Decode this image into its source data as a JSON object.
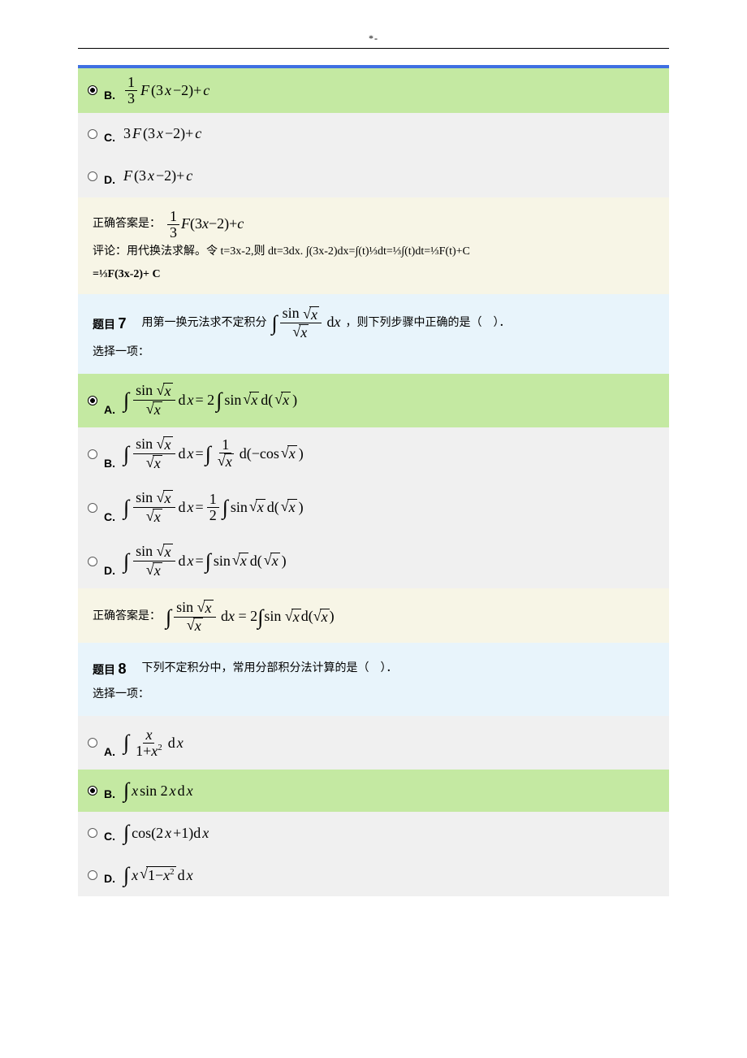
{
  "page_header_mark": "*-",
  "colors": {
    "accent_border": "#3f70e2",
    "selected_bg": "#c4e9a2",
    "unselected_bg": "#f0f0f0",
    "info_bg": "#f7f5e6",
    "question_bg": "#e8f4fb",
    "text": "#000000"
  },
  "q6_tail": {
    "options": {
      "B": {
        "letter": "B.",
        "html": "<span class='frac'><span class='num up'>1</span><span class='den up'>3</span></span><span class='math'>F</span><span class='math up'>(3</span><span class='math'>x</span><span class='math up'>−2)+</span><span class='math'>c</span>",
        "selected": true
      },
      "C": {
        "letter": "C.",
        "html": "<span class='math up'>3</span><span class='math'>F</span><span class='math up'>(3</span><span class='math'>x</span><span class='math up'>−2)+</span><span class='math'>c</span>",
        "selected": false
      },
      "D": {
        "letter": "D.",
        "html": "<span class='math'>F</span><span class='math up'>(3</span><span class='math'>x</span><span class='math up'>−2)+</span><span class='math'>c</span>",
        "selected": false
      }
    },
    "correct_label": "正确答案是：",
    "correct_html": "<span class='frac'><span class='num up'>1</span><span class='den up'>3</span></span><span class='math'>F</span><span class='math up'>(3</span><span class='math'>x</span><span class='math up'>−2)+</span><span class='math'>c</span>",
    "commentary_line1": "评论：用代换法求解。令 t=3x-2,则 dt=3dx.  ∫(3x-2)dx=∫(t)⅓dt=⅓∫(t)dt=⅓F(t)+C",
    "commentary_line2": "=⅓F(3x-2)+ C"
  },
  "q7": {
    "label": "题目",
    "number": "7",
    "stem_pre": "用第一换元法求不定积分",
    "stem_integral_html": "<span class='intsym'>∫</span><span class='frac'><span class='num'><span class='up'>sin </span><span class='sqrt'><span class='radicand'>x</span></span></span><span class='den'><span class='sqrt'><span class='radicand'>x</span></span></span></span><span class='up'> d</span>x",
    "stem_post": "，则下列步骤中正确的是（　）．",
    "select_one": "选择一项：",
    "options": {
      "A": {
        "letter": "A.",
        "selected": true,
        "html": "<span class='intsym'>∫</span><span class='frac'><span class='num'><span class='up'>sin </span><span class='sqrt'><span class='radicand'>x</span></span></span><span class='den'><span class='sqrt'><span class='radicand'>x</span></span></span></span><span class='up'> d</span>x <span class='up'>= 2</span><span class='intsym'>∫</span><span class='up'>sin </span><span class='sqrt'><span class='radicand'>x</span></span><span class='up'>d(</span><span class='sqrt'><span class='radicand'>x</span></span><span class='up'>)</span>"
      },
      "B": {
        "letter": "B.",
        "selected": false,
        "html": "<span class='intsym'>∫</span><span class='frac'><span class='num'><span class='up'>sin </span><span class='sqrt'><span class='radicand'>x</span></span></span><span class='den'><span class='sqrt'><span class='radicand'>x</span></span></span></span><span class='up'> d</span>x <span class='up'>= </span><span class='intsym'>∫</span><span class='frac'><span class='num up'>1</span><span class='den'><span class='sqrt'><span class='radicand'>x</span></span></span></span><span class='up'> d(−cos </span><span class='sqrt'><span class='radicand'>x</span></span><span class='up'>)</span>"
      },
      "C": {
        "letter": "C.",
        "selected": false,
        "html": "<span class='intsym'>∫</span><span class='frac'><span class='num'><span class='up'>sin </span><span class='sqrt'><span class='radicand'>x</span></span></span><span class='den'><span class='sqrt'><span class='radicand'>x</span></span></span></span><span class='up'> d</span>x <span class='up'>= </span><span class='frac'><span class='num up'>1</span><span class='den up'>2</span></span><span class='intsym'>∫</span><span class='up'>sin </span><span class='sqrt'><span class='radicand'>x</span></span><span class='up'>d(</span><span class='sqrt'><span class='radicand'>x</span></span><span class='up'>)</span>"
      },
      "D": {
        "letter": "D.",
        "selected": false,
        "html": "<span class='intsym'>∫</span><span class='frac'><span class='num'><span class='up'>sin </span><span class='sqrt'><span class='radicand'>x</span></span></span><span class='den'><span class='sqrt'><span class='radicand'>x</span></span></span></span><span class='up'> d</span>x <span class='up'>= </span><span class='intsym'>∫</span><span class='up'>sin </span><span class='sqrt'><span class='radicand'>x</span></span><span class='up'>d(</span><span class='sqrt'><span class='radicand'>x</span></span><span class='up'>)</span>"
      }
    },
    "correct_label": "正确答案是：",
    "correct_html": "<span class='intsym'>∫</span><span class='frac'><span class='num'><span class='up'>sin </span><span class='sqrt'><span class='radicand'>x</span></span></span><span class='den'><span class='sqrt'><span class='radicand'>x</span></span></span></span><span class='up'> d</span>x <span class='up'>= 2</span><span class='intsym'>∫</span><span class='up'>sin </span><span class='sqrt'><span class='radicand'>x</span></span><span class='up'>d(</span><span class='sqrt'><span class='radicand'>x</span></span><span class='up'>)</span>"
  },
  "q8": {
    "label": "题目",
    "number": "8",
    "stem": "下列不定积分中，常用分部积分法计算的是（　）．",
    "select_one": "选择一项：",
    "options": {
      "A": {
        "letter": "A.",
        "selected": false,
        "html": "<span class='intsym'>∫</span><span class='frac'><span class='num'>x</span><span class='den'><span class='up'>1+</span>x<span class='sup up'>2</span></span></span><span class='up'> d</span>x"
      },
      "B": {
        "letter": "B.",
        "selected": true,
        "html": "<span class='intsym'>∫</span>x<span class='up'>sin 2</span>x<span class='up'>d</span>x"
      },
      "C": {
        "letter": "C.",
        "selected": false,
        "html": "<span class='intsym'>∫</span><span class='up'>cos(2</span>x<span class='up'>+1)d</span>x"
      },
      "D": {
        "letter": "D.",
        "selected": false,
        "html": "<span class='intsym'>∫</span>x<span class='sqrt'><span class='radicand'><span class='up'>1−</span>x<span class='sup up'>2</span></span></span><span class='up'> d</span>x"
      }
    }
  }
}
